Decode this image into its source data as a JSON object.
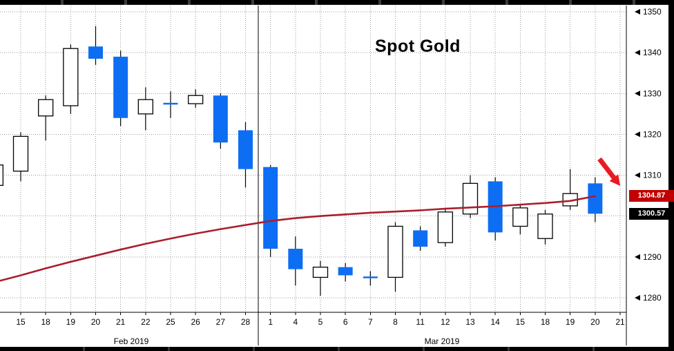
{
  "chart": {
    "title": "Spot Gold",
    "badges": {
      "ma_value": "1304.87",
      "ma_bg": "#c00000",
      "last_value": "1300.57",
      "last_bg": "#000000"
    },
    "month_labels": [
      "Feb 2019",
      "Mar 2019"
    ]
  },
  "chart_data": {
    "type": "candlestick",
    "title": "Spot Gold",
    "y_axis": {
      "side": "right",
      "min": 1278,
      "max": 1352,
      "tick_interval": 10,
      "grid_prices": [
        1280,
        1290,
        1300,
        1310,
        1320,
        1330,
        1340,
        1350
      ],
      "tick_labels": [
        1350,
        1340,
        1330,
        1320,
        1310,
        1290,
        1280
      ]
    },
    "x_axis": {
      "tick_labels": [
        "15",
        "18",
        "19",
        "20",
        "21",
        "22",
        "25",
        "26",
        "27",
        "28",
        "1",
        "4",
        "5",
        "6",
        "7",
        "8",
        "11",
        "12",
        "13",
        "14",
        "15",
        "18",
        "19",
        "20",
        "21"
      ],
      "month_labels": [
        "Feb 2019",
        "Mar 2019"
      ],
      "month_separator_after": "28"
    },
    "series": {
      "candles": [
        {
          "date": "",
          "open": 1307.5,
          "high": 1313.0,
          "low": 1304.5,
          "close": 1312.5
        },
        {
          "date": "15",
          "open": 1311.0,
          "high": 1320.5,
          "low": 1308.5,
          "close": 1319.5
        },
        {
          "date": "18",
          "open": 1324.5,
          "high": 1329.5,
          "low": 1318.5,
          "close": 1328.5
        },
        {
          "date": "19",
          "open": 1327.0,
          "high": 1342.0,
          "low": 1325.0,
          "close": 1341.0
        },
        {
          "date": "20",
          "open": 1341.5,
          "high": 1346.5,
          "low": 1337.0,
          "close": 1338.5
        },
        {
          "date": "21",
          "open": 1339.0,
          "high": 1340.5,
          "low": 1322.0,
          "close": 1324.0
        },
        {
          "date": "22",
          "open": 1325.0,
          "high": 1331.5,
          "low": 1321.0,
          "close": 1328.5
        },
        {
          "date": "25",
          "open": 1327.5,
          "high": 1330.5,
          "low": 1324.0,
          "close": 1327.5
        },
        {
          "date": "26",
          "open": 1327.5,
          "high": 1331.0,
          "low": 1326.5,
          "close": 1329.5
        },
        {
          "date": "27",
          "open": 1329.5,
          "high": 1330.0,
          "low": 1316.5,
          "close": 1318.0
        },
        {
          "date": "28",
          "open": 1321.0,
          "high": 1323.0,
          "low": 1307.0,
          "close": 1311.5
        },
        {
          "date": "1",
          "open": 1312.0,
          "high": 1312.5,
          "low": 1290.0,
          "close": 1292.0
        },
        {
          "date": "4",
          "open": 1292.0,
          "high": 1295.0,
          "low": 1283.0,
          "close": 1287.0
        },
        {
          "date": "5",
          "open": 1285.0,
          "high": 1289.0,
          "low": 1280.5,
          "close": 1287.5
        },
        {
          "date": "6",
          "open": 1287.5,
          "high": 1288.5,
          "low": 1284.0,
          "close": 1285.5
        },
        {
          "date": "7",
          "open": 1285.0,
          "high": 1286.5,
          "low": 1283.0,
          "close": 1285.0
        },
        {
          "date": "8",
          "open": 1285.0,
          "high": 1298.5,
          "low": 1281.5,
          "close": 1297.5
        },
        {
          "date": "11",
          "open": 1296.5,
          "high": 1297.5,
          "low": 1291.5,
          "close": 1292.5
        },
        {
          "date": "12",
          "open": 1293.5,
          "high": 1302.0,
          "low": 1292.5,
          "close": 1301.0
        },
        {
          "date": "13",
          "open": 1300.5,
          "high": 1310.0,
          "low": 1299.5,
          "close": 1308.0
        },
        {
          "date": "14",
          "open": 1308.5,
          "high": 1309.5,
          "low": 1294.0,
          "close": 1296.0
        },
        {
          "date": "15",
          "open": 1297.5,
          "high": 1303.0,
          "low": 1295.5,
          "close": 1302.0
        },
        {
          "date": "18",
          "open": 1294.5,
          "high": 1301.5,
          "low": 1293.0,
          "close": 1300.5
        },
        {
          "date": "19",
          "open": 1302.5,
          "high": 1311.5,
          "low": 1301.5,
          "close": 1305.5
        },
        {
          "date": "20",
          "open": 1308.0,
          "high": 1309.5,
          "low": 1298.5,
          "close": 1300.57
        }
      ],
      "moving_average": {
        "name": "moving-average-line",
        "color": "#aa1e2d",
        "last_value": 1304.87,
        "values": [
          1283.9,
          1285.5,
          1287.2,
          1288.8,
          1290.3,
          1291.8,
          1293.2,
          1294.5,
          1295.7,
          1296.8,
          1297.8,
          1298.8,
          1299.5,
          1300.0,
          1300.4,
          1300.8,
          1301.1,
          1301.4,
          1301.8,
          1302.1,
          1302.4,
          1302.8,
          1303.2,
          1303.7,
          1304.87
        ]
      }
    },
    "last_price": 1300.57,
    "annotations": {
      "arrow_color": "#e81b23"
    },
    "colors": {
      "up_candle": "#ffffff",
      "down_candle": "#0d6ef4",
      "outline": "#000000",
      "grid": "#9a9a9a"
    }
  }
}
